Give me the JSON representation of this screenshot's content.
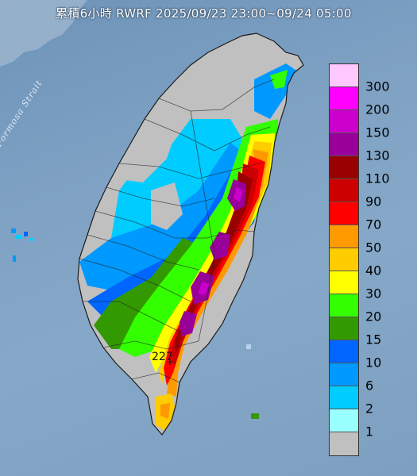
{
  "title": "累積6小時 RWRF 2025/09/23 23:00~09/24 05:00",
  "strait_label": "Formosa Strait",
  "peak_value": "227",
  "legend": [
    {
      "label": "300",
      "color": "#ffc8ff"
    },
    {
      "label": "200",
      "color": "#ff00ff"
    },
    {
      "label": "150",
      "color": "#cc00cc"
    },
    {
      "label": "130",
      "color": "#990099"
    },
    {
      "label": "110",
      "color": "#990000"
    },
    {
      "label": "90",
      "color": "#cc0000"
    },
    {
      "label": "70",
      "color": "#ff0000"
    },
    {
      "label": "50",
      "color": "#ff9900"
    },
    {
      "label": "40",
      "color": "#ffcc00"
    },
    {
      "label": "30",
      "color": "#ffff00"
    },
    {
      "label": "20",
      "color": "#33ff00"
    },
    {
      "label": "15",
      "color": "#339900"
    },
    {
      "label": "10",
      "color": "#0066ff"
    },
    {
      "label": "6",
      "color": "#0099ff"
    },
    {
      "label": "2",
      "color": "#00ccff"
    },
    {
      "label": "1",
      "color": "#99ffff"
    },
    {
      "label": "",
      "color": "#c0c0c0"
    }
  ]
}
